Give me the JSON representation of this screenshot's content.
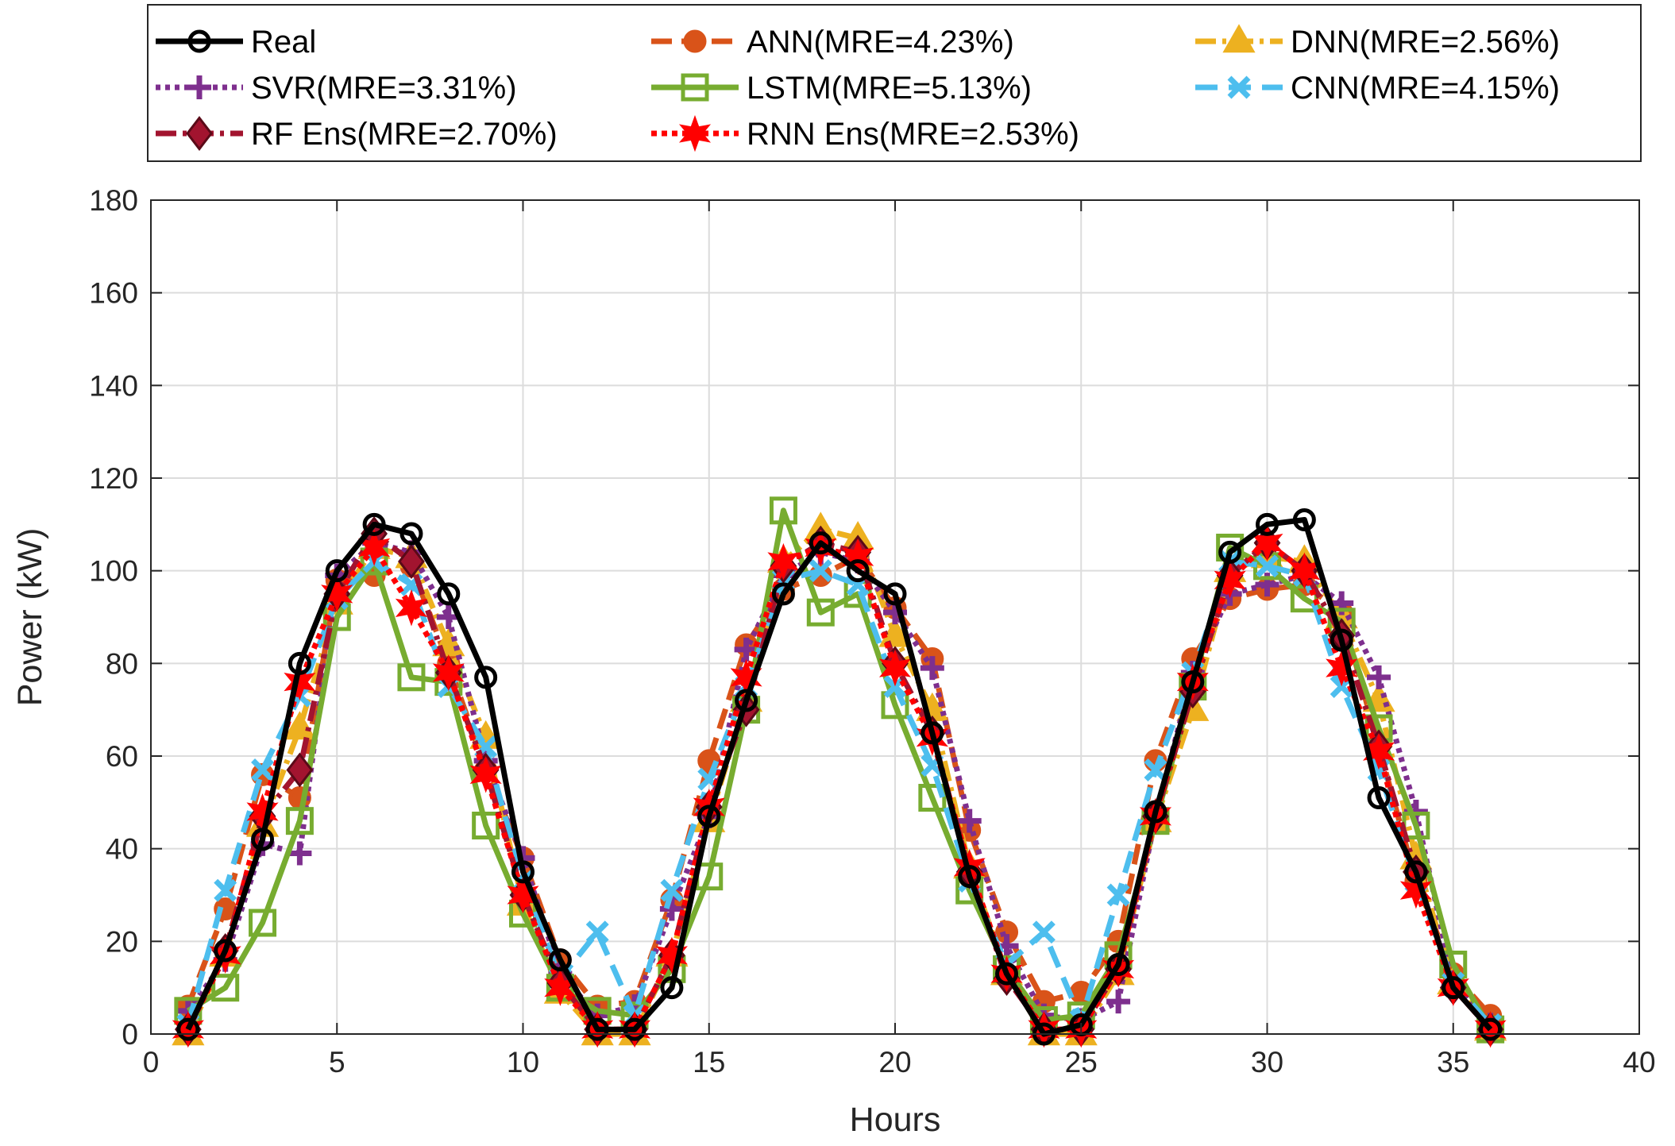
{
  "chart_data": {
    "type": "line",
    "title": "",
    "xlabel": "Hours",
    "ylabel": "Power (kW)",
    "xlim": [
      0,
      40
    ],
    "ylim": [
      0,
      180
    ],
    "xticks": [
      0,
      5,
      10,
      15,
      20,
      25,
      30,
      35,
      40
    ],
    "yticks": [
      0,
      20,
      40,
      60,
      80,
      100,
      120,
      140,
      160,
      180
    ],
    "grid": true,
    "legend_position": "top (outside plot, 3 columns)",
    "x": [
      1,
      2,
      3,
      4,
      5,
      6,
      7,
      8,
      9,
      10,
      11,
      12,
      13,
      14,
      15,
      16,
      17,
      18,
      19,
      20,
      21,
      22,
      23,
      24,
      25,
      26,
      27,
      28,
      29,
      30,
      31,
      32,
      33,
      34,
      35,
      36
    ],
    "series": [
      {
        "name": "Real",
        "color": "#000000",
        "dash": "",
        "marker": "circle",
        "values": [
          1,
          18,
          42,
          80,
          100,
          110,
          108,
          95,
          77,
          35,
          16,
          1,
          1,
          10,
          47,
          72,
          95,
          106,
          100,
          95,
          65,
          34,
          13,
          0,
          2,
          15,
          48,
          76,
          104,
          110,
          111,
          85,
          51,
          35,
          10,
          1
        ]
      },
      {
        "name": "ANN(MRE=4.23%)",
        "color": "#D95319",
        "dash": "26,12",
        "marker": "circle",
        "values": [
          6,
          27,
          56,
          51,
          98,
          99,
          101,
          80,
          57,
          38,
          16,
          6,
          7,
          29,
          59,
          84,
          96,
          99,
          103,
          92,
          81,
          44,
          22,
          7,
          9,
          20,
          59,
          81,
          94,
          96,
          97,
          91,
          62,
          33,
          13,
          4
        ]
      },
      {
        "name": "DNN(MRE=2.56%)",
        "color": "#EDB120",
        "dash": "26,8,5,8",
        "marker": "triangle",
        "values": [
          0,
          17,
          45,
          66,
          93,
          105,
          103,
          84,
          64,
          28,
          9,
          0,
          0,
          17,
          46,
          72,
          102,
          109,
          107,
          86,
          70,
          36,
          13,
          0,
          0,
          13,
          46,
          70,
          100,
          103,
          102,
          90,
          72,
          38,
          11,
          1
        ]
      },
      {
        "name": "SVR(MRE=3.31%)",
        "color": "#7E2F8E",
        "dash": "6,6",
        "marker": "plus",
        "values": [
          5,
          16,
          41,
          39,
          99,
          106,
          104,
          90,
          59,
          38,
          13,
          4,
          6,
          27,
          47,
          83,
          99,
          104,
          102,
          91,
          79,
          46,
          19,
          4,
          3,
          7,
          47,
          78,
          95,
          97,
          99,
          93,
          77,
          48,
          11,
          2
        ]
      },
      {
        "name": "LSTM(MRE=5.13%)",
        "color": "#77AC30",
        "dash": "",
        "marker": "square",
        "values": [
          5,
          10,
          24,
          46,
          90,
          102,
          77,
          76,
          45,
          26,
          10,
          5,
          4,
          14,
          34,
          70,
          113,
          91,
          95,
          71,
          51,
          31,
          14,
          3,
          4,
          17,
          46,
          75,
          105,
          101,
          94,
          89,
          66,
          45,
          15,
          1
        ]
      },
      {
        "name": "CNN(MRE=4.15%)",
        "color": "#4DBEEE",
        "dash": "28,14",
        "marker": "x",
        "values": [
          2,
          31,
          57,
          73,
          94,
          102,
          97,
          75,
          62,
          33,
          12,
          22,
          4,
          31,
          55,
          75,
          98,
          100,
          97,
          75,
          58,
          33,
          15,
          22,
          3,
          30,
          57,
          78,
          102,
          101,
          99,
          75,
          57,
          33,
          11,
          2
        ]
      },
      {
        "name": "RF Ens(MRE=2.70%)",
        "color": "#A2142F",
        "dash": "26,8,5,8",
        "marker": "diamond",
        "values": [
          1,
          18,
          47,
          57,
          95,
          108,
          102,
          78,
          57,
          30,
          11,
          1,
          1,
          17,
          49,
          70,
          101,
          106,
          104,
          80,
          65,
          35,
          12,
          1,
          1,
          14,
          47,
          74,
          99,
          106,
          100,
          86,
          62,
          35,
          10,
          1
        ]
      },
      {
        "name": "RNN Ens(MRE=2.53%)",
        "color": "#FF0000",
        "dash": "7,6",
        "marker": "star",
        "values": [
          1,
          17,
          48,
          76,
          95,
          105,
          92,
          78,
          56,
          30,
          10,
          1,
          1,
          17,
          49,
          77,
          102,
          105,
          103,
          79,
          64,
          36,
          13,
          1,
          1,
          14,
          47,
          76,
          98,
          106,
          100,
          79,
          61,
          31,
          10,
          1
        ]
      }
    ]
  }
}
